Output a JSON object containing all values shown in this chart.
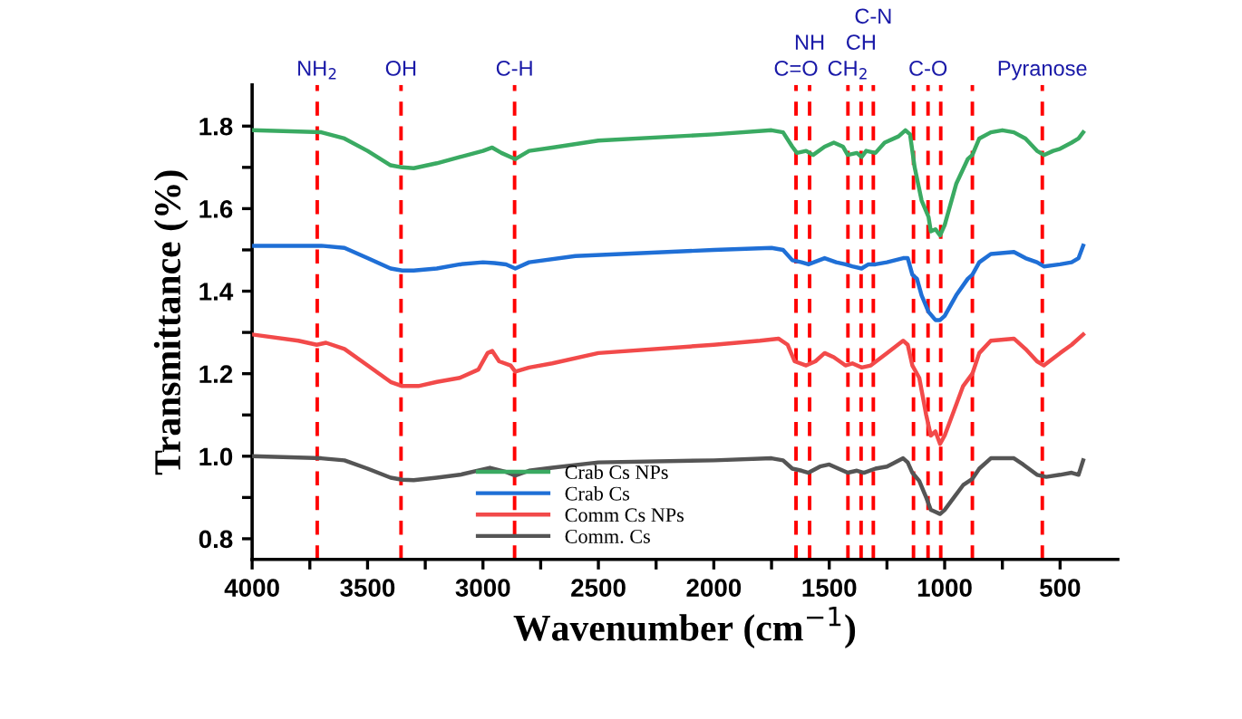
{
  "chart_data": {
    "type": "line",
    "xlabel": "Wavenumber (cm$^{−1}$)",
    "ylabel": "Transmittance (%)",
    "xlim": [
      4000,
      250
    ],
    "ylim": [
      0.75,
      1.9
    ],
    "xticks": [
      4000,
      {
        "value": 3750,
        "label": null
      },
      3500,
      {
        "value": 3250,
        "label": null
      },
      3000,
      {
        "value": 2750,
        "label": null
      },
      2500,
      {
        "value": 2250,
        "label": null
      },
      2000,
      {
        "value": 1750,
        "label": null
      },
      1500,
      {
        "value": 1250,
        "label": null
      },
      1000,
      {
        "value": 750,
        "label": null
      },
      500
    ],
    "yticks": [
      0.8,
      {
        "value": 0.9,
        "label": null
      },
      {
        "value": 1.0,
        "label": "1.0"
      },
      {
        "value": 1.1,
        "label": null
      },
      1.2,
      {
        "value": 1.3,
        "label": null
      },
      1.4,
      {
        "value": 1.5,
        "label": null
      },
      1.6,
      {
        "value": 1.7,
        "label": null
      },
      1.8
    ],
    "grid": false,
    "legend": "bottom",
    "line_style": "solid",
    "marker": "none",
    "series": [
      {
        "name": "Crab Cs NPs",
        "color": "#3aaa62",
        "x": [
          4000,
          3700,
          3600,
          3500,
          3400,
          3350,
          3300,
          3200,
          3100,
          3000,
          2960,
          2920,
          2860,
          2800,
          2700,
          2500,
          2000,
          1750,
          1700,
          1660,
          1640,
          1600,
          1570,
          1520,
          1480,
          1440,
          1420,
          1380,
          1360,
          1340,
          1300,
          1260,
          1200,
          1170,
          1150,
          1130,
          1100,
          1070,
          1060,
          1040,
          1020,
          1000,
          980,
          950,
          900,
          880,
          850,
          800,
          750,
          700,
          650,
          600,
          570,
          530,
          500,
          450,
          420,
          400
        ],
        "values": [
          1.79,
          1.785,
          1.77,
          1.74,
          1.705,
          1.7,
          1.698,
          1.71,
          1.725,
          1.74,
          1.748,
          1.735,
          1.72,
          1.74,
          1.748,
          1.765,
          1.78,
          1.79,
          1.785,
          1.75,
          1.735,
          1.74,
          1.73,
          1.75,
          1.76,
          1.75,
          1.73,
          1.735,
          1.725,
          1.74,
          1.735,
          1.76,
          1.775,
          1.79,
          1.78,
          1.7,
          1.62,
          1.58,
          1.545,
          1.55,
          1.535,
          1.56,
          1.6,
          1.66,
          1.72,
          1.73,
          1.77,
          1.785,
          1.79,
          1.785,
          1.77,
          1.74,
          1.73,
          1.74,
          1.745,
          1.76,
          1.77,
          1.785
        ]
      },
      {
        "name": "Crab Cs",
        "color": "#1f6fd6",
        "x": [
          4000,
          3700,
          3600,
          3500,
          3400,
          3350,
          3300,
          3200,
          3100,
          3000,
          2950,
          2900,
          2860,
          2800,
          2600,
          2000,
          1750,
          1700,
          1660,
          1620,
          1590,
          1520,
          1470,
          1430,
          1400,
          1360,
          1330,
          1300,
          1250,
          1180,
          1160,
          1140,
          1120,
          1100,
          1070,
          1040,
          1020,
          1000,
          950,
          900,
          880,
          850,
          800,
          700,
          650,
          600,
          570,
          500,
          450,
          420,
          400
        ],
        "values": [
          1.51,
          1.51,
          1.505,
          1.48,
          1.455,
          1.45,
          1.45,
          1.455,
          1.465,
          1.47,
          1.468,
          1.465,
          1.455,
          1.47,
          1.485,
          1.5,
          1.505,
          1.5,
          1.475,
          1.47,
          1.465,
          1.48,
          1.47,
          1.465,
          1.46,
          1.455,
          1.465,
          1.465,
          1.47,
          1.48,
          1.48,
          1.44,
          1.43,
          1.39,
          1.35,
          1.33,
          1.33,
          1.34,
          1.39,
          1.43,
          1.44,
          1.47,
          1.49,
          1.495,
          1.48,
          1.47,
          1.46,
          1.465,
          1.47,
          1.48,
          1.51
        ]
      },
      {
        "name": "Comm Cs NPs",
        "color": "#f24a4a",
        "x": [
          4000,
          3800,
          3720,
          3680,
          3600,
          3500,
          3400,
          3350,
          3280,
          3200,
          3100,
          3020,
          2980,
          2960,
          2930,
          2880,
          2860,
          2800,
          2700,
          2500,
          2000,
          1800,
          1720,
          1680,
          1650,
          1600,
          1560,
          1520,
          1480,
          1430,
          1400,
          1360,
          1320,
          1250,
          1180,
          1160,
          1140,
          1110,
          1080,
          1060,
          1040,
          1020,
          1000,
          960,
          920,
          880,
          850,
          800,
          700,
          650,
          600,
          570,
          500,
          450,
          400
        ],
        "values": [
          1.295,
          1.28,
          1.27,
          1.275,
          1.26,
          1.22,
          1.18,
          1.17,
          1.17,
          1.18,
          1.19,
          1.21,
          1.25,
          1.255,
          1.23,
          1.22,
          1.205,
          1.215,
          1.225,
          1.25,
          1.27,
          1.28,
          1.285,
          1.27,
          1.23,
          1.22,
          1.23,
          1.25,
          1.24,
          1.22,
          1.225,
          1.215,
          1.22,
          1.25,
          1.28,
          1.27,
          1.22,
          1.19,
          1.1,
          1.05,
          1.06,
          1.03,
          1.05,
          1.11,
          1.17,
          1.2,
          1.25,
          1.28,
          1.285,
          1.26,
          1.23,
          1.22,
          1.25,
          1.27,
          1.295
        ]
      },
      {
        "name": "Comm. Cs",
        "color": "#555555",
        "x": [
          4000,
          3700,
          3600,
          3500,
          3400,
          3350,
          3300,
          3200,
          3100,
          3000,
          2970,
          2900,
          2860,
          2800,
          2700,
          2500,
          2000,
          1750,
          1700,
          1660,
          1620,
          1590,
          1540,
          1500,
          1460,
          1420,
          1380,
          1350,
          1300,
          1250,
          1180,
          1160,
          1140,
          1110,
          1080,
          1060,
          1040,
          1020,
          1000,
          960,
          920,
          880,
          850,
          800,
          700,
          660,
          600,
          560,
          500,
          450,
          420,
          400
        ],
        "values": [
          1.0,
          0.995,
          0.99,
          0.97,
          0.948,
          0.943,
          0.942,
          0.948,
          0.955,
          0.968,
          0.972,
          0.962,
          0.953,
          0.965,
          0.972,
          0.985,
          0.99,
          0.995,
          0.99,
          0.97,
          0.965,
          0.96,
          0.975,
          0.98,
          0.97,
          0.96,
          0.965,
          0.96,
          0.97,
          0.975,
          0.995,
          0.985,
          0.96,
          0.94,
          0.9,
          0.87,
          0.865,
          0.86,
          0.87,
          0.9,
          0.93,
          0.945,
          0.97,
          0.995,
          0.995,
          0.98,
          0.955,
          0.95,
          0.955,
          0.96,
          0.955,
          0.99
        ]
      }
    ],
    "ref_lines": [
      {
        "axis": "x",
        "value": 3718,
        "color": "#ff0000",
        "line_style": "dashed",
        "label": "NH$_{2}$"
      },
      {
        "axis": "x",
        "value": 3355,
        "color": "#ff0000",
        "line_style": "dashed",
        "label": "OH"
      },
      {
        "axis": "x",
        "value": 2863,
        "color": "#ff0000",
        "line_style": "dashed",
        "label": "C-H"
      },
      {
        "axis": "x",
        "value": 1644,
        "color": "#ff0000",
        "line_style": "dashed",
        "label": "C=O"
      },
      {
        "axis": "x",
        "value": 1585,
        "color": "#ff0000",
        "line_style": "dashed",
        "label": "NH"
      },
      {
        "axis": "x",
        "value": 1419,
        "color": "#ff0000",
        "line_style": "dashed",
        "label": "CH$_{2}$"
      },
      {
        "axis": "x",
        "value": 1362,
        "color": "#ff0000",
        "line_style": "dashed",
        "label": "CH"
      },
      {
        "axis": "x",
        "value": 1309,
        "color": "#ff0000",
        "line_style": "dashed",
        "label": "C-N"
      },
      {
        "axis": "x",
        "value": 1135,
        "color": "#ff0000",
        "line_style": "dashed"
      },
      {
        "axis": "x",
        "value": 1072,
        "color": "#ff0000",
        "line_style": "dashed",
        "label": "C-O"
      },
      {
        "axis": "x",
        "value": 1017,
        "color": "#ff0000",
        "line_style": "dashed"
      },
      {
        "axis": "x",
        "value": 880,
        "color": "#ff0000",
        "line_style": "dashed"
      },
      {
        "axis": "x",
        "value": 577,
        "color": "#ff0000",
        "line_style": "dashed",
        "label": "Pyranose"
      }
    ]
  }
}
